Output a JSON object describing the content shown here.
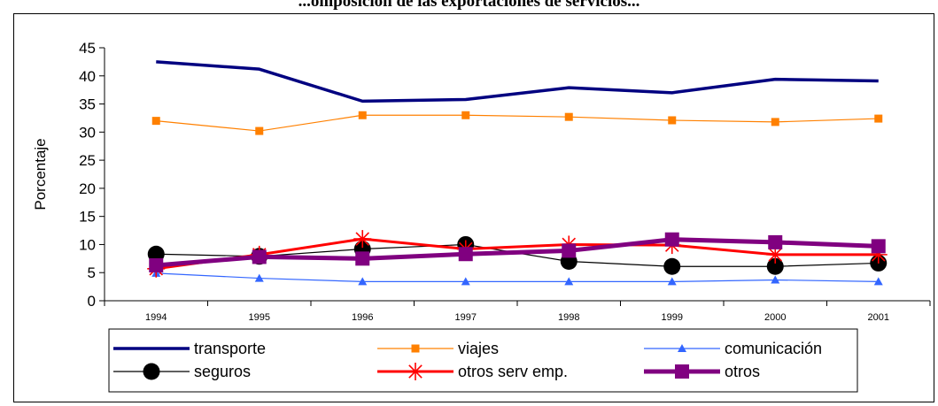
{
  "chart_data": {
    "type": "line",
    "title": "...omposición de las exportaciones de servicios...",
    "xlabel": "",
    "ylabel": "Porcentaje",
    "categories": [
      "1994",
      "1995",
      "1996",
      "1997",
      "1998",
      "1999",
      "2000",
      "2001"
    ],
    "ylim": [
      0,
      45
    ],
    "yticks": [
      "0",
      "5",
      "10",
      "15",
      "20",
      "25",
      "30",
      "35",
      "40",
      "45"
    ],
    "grid": false,
    "legend_position": "bottom",
    "series": [
      {
        "name": "transporte",
        "values": [
          42.5,
          41.2,
          35.5,
          35.8,
          37.9,
          37.0,
          39.4,
          39.1
        ],
        "color": "#000080",
        "marker": "none"
      },
      {
        "name": "viajes",
        "values": [
          32.0,
          30.2,
          33.0,
          33.0,
          32.7,
          32.1,
          31.8,
          32.4
        ],
        "color": "#FF8000",
        "marker": "square"
      },
      {
        "name": "comunicación",
        "values": [
          4.9,
          4.0,
          3.4,
          3.4,
          3.4,
          3.4,
          3.7,
          3.4
        ],
        "color": "#3366FF",
        "marker": "triangle"
      },
      {
        "name": "seguros",
        "values": [
          8.3,
          7.9,
          9.2,
          10.0,
          7.0,
          6.1,
          6.1,
          6.7
        ],
        "color": "#000000",
        "marker": "circle"
      },
      {
        "name": "otros serv emp.",
        "values": [
          5.7,
          8.2,
          11.0,
          9.2,
          10.0,
          9.9,
          8.2,
          8.2
        ],
        "color": "#FF0000",
        "marker": "asterisk"
      },
      {
        "name": "otros",
        "values": [
          6.3,
          7.8,
          7.5,
          8.3,
          8.9,
          10.9,
          10.4,
          9.7
        ],
        "color": "#800080",
        "marker": "square-large"
      }
    ]
  }
}
